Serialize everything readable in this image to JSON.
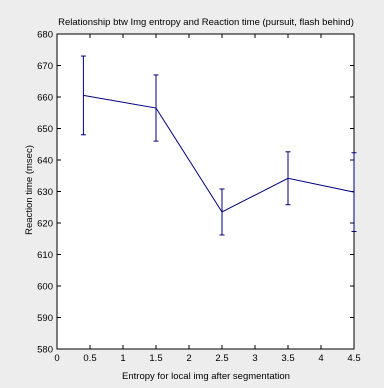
{
  "chart_data": {
    "type": "line",
    "title": "Relationship btw Img entropy and Reaction time (pursuit, flash behind)",
    "xlabel": "Entropy for local img after segmentation",
    "ylabel": "Reaction time (msec)",
    "xlim": [
      0,
      4.5
    ],
    "ylim": [
      580,
      680
    ],
    "xticks": [
      0,
      0.5,
      1,
      1.5,
      2,
      2.5,
      3,
      3.5,
      4,
      4.5
    ],
    "xtick_labels": [
      "0",
      "0.5",
      "1",
      "1.5",
      "2",
      "2.5",
      "3",
      "3.5",
      "4",
      "4.5"
    ],
    "yticks": [
      580,
      590,
      600,
      610,
      620,
      630,
      640,
      650,
      660,
      670,
      680
    ],
    "ytick_labels": [
      "580",
      "590",
      "600",
      "610",
      "620",
      "630",
      "640",
      "650",
      "660",
      "670",
      "680"
    ],
    "grid": false,
    "series": [
      {
        "x": [
          0.4,
          1.5,
          2.5,
          3.5,
          4.5
        ],
        "y": [
          660.5,
          656.5,
          623.5,
          634.2,
          629.8
        ],
        "err": [
          12.5,
          10.5,
          7.3,
          8.4,
          12.5
        ],
        "color": "#00007f"
      }
    ]
  }
}
